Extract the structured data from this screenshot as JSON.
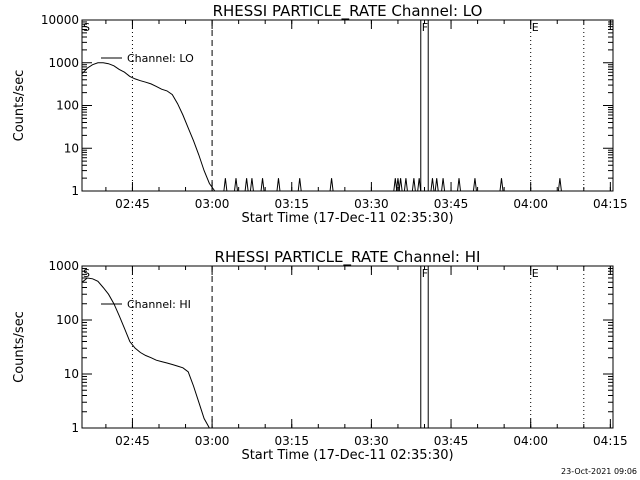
{
  "footer": {
    "timestamp": "23-Oct-2021 09:06"
  },
  "chart_data": [
    {
      "type": "line",
      "title": "RHESSI PARTICLE_RATE Channel: LO",
      "xlabel": "Start Time (17-Dec-11 02:35:30)",
      "ylabel": "Counts/sec",
      "x_unit": "minutes since 02:35:30",
      "xlim": [
        0,
        100
      ],
      "ylim": [
        1,
        10000
      ],
      "yscale": "log",
      "x_ticks": [
        "02:45",
        "03:00",
        "03:15",
        "03:30",
        "03:45",
        "04:00",
        "04:15"
      ],
      "y_ticks": [
        "1",
        "10",
        "100",
        "1000",
        "10000"
      ],
      "legend": {
        "position": "top-left",
        "entries": [
          "Channel: LO"
        ]
      },
      "markers": [
        {
          "label": "S",
          "x": 0,
          "style": "none"
        },
        {
          "label": "",
          "x": 9.5,
          "style": "dotted"
        },
        {
          "label": "",
          "x": 24.5,
          "style": "dashed"
        },
        {
          "label": "F",
          "x": 63.8,
          "style": "solid"
        },
        {
          "label": "",
          "x": 65.2,
          "style": "solid"
        },
        {
          "label": "E",
          "x": 84.5,
          "style": "dotted"
        },
        {
          "label": "",
          "x": 94.5,
          "style": "dotted"
        }
      ],
      "series": [
        {
          "name": "Channel: LO",
          "x": [
            0,
            1,
            2,
            3,
            4,
            5,
            6,
            7,
            8,
            9,
            10,
            11,
            12,
            13,
            14,
            15,
            16,
            17,
            18,
            19,
            20,
            21,
            22,
            23,
            24,
            25
          ],
          "y": [
            550,
            750,
            900,
            1000,
            1000,
            950,
            850,
            700,
            600,
            480,
            420,
            380,
            350,
            320,
            280,
            240,
            220,
            180,
            110,
            60,
            30,
            15,
            7,
            3,
            1.5,
            1
          ]
        }
      ],
      "spikes_x": [
        27,
        29,
        31,
        32,
        34,
        37,
        41,
        47,
        59,
        59.5,
        60,
        61,
        62.5,
        63.5,
        66,
        66.8,
        68,
        71,
        74,
        79,
        90
      ]
    },
    {
      "type": "line",
      "title": "RHESSI PARTICLE_RATE Channel: HI",
      "xlabel": "Start Time (17-Dec-11 02:35:30)",
      "ylabel": "Counts/sec",
      "x_unit": "minutes since 02:35:30",
      "xlim": [
        0,
        100
      ],
      "ylim": [
        1,
        1000
      ],
      "yscale": "log",
      "x_ticks": [
        "02:45",
        "03:00",
        "03:15",
        "03:30",
        "03:45",
        "04:00",
        "04:15"
      ],
      "y_ticks": [
        "1",
        "10",
        "100",
        "1000"
      ],
      "legend": {
        "position": "top-left",
        "entries": [
          "Channel: HI"
        ]
      },
      "markers": [
        {
          "label": "S",
          "x": 0,
          "style": "none"
        },
        {
          "label": "",
          "x": 9.5,
          "style": "dotted"
        },
        {
          "label": "",
          "x": 24.5,
          "style": "dashed"
        },
        {
          "label": "F",
          "x": 63.8,
          "style": "solid"
        },
        {
          "label": "",
          "x": 65.2,
          "style": "solid"
        },
        {
          "label": "E",
          "x": 84.5,
          "style": "dotted"
        },
        {
          "label": "",
          "x": 94.5,
          "style": "dotted"
        }
      ],
      "series": [
        {
          "name": "Channel: HI",
          "x": [
            0,
            1,
            2,
            3,
            4,
            5,
            6,
            7,
            8,
            9,
            10,
            11,
            12,
            13,
            14,
            15,
            16,
            17,
            18,
            19,
            20,
            21,
            22,
            23,
            24
          ],
          "y": [
            500,
            600,
            580,
            520,
            400,
            300,
            200,
            120,
            70,
            40,
            30,
            25,
            22,
            20,
            18,
            17,
            16,
            15,
            14,
            13,
            11,
            6,
            3,
            1.5,
            1
          ]
        }
      ],
      "spikes_x": []
    }
  ]
}
